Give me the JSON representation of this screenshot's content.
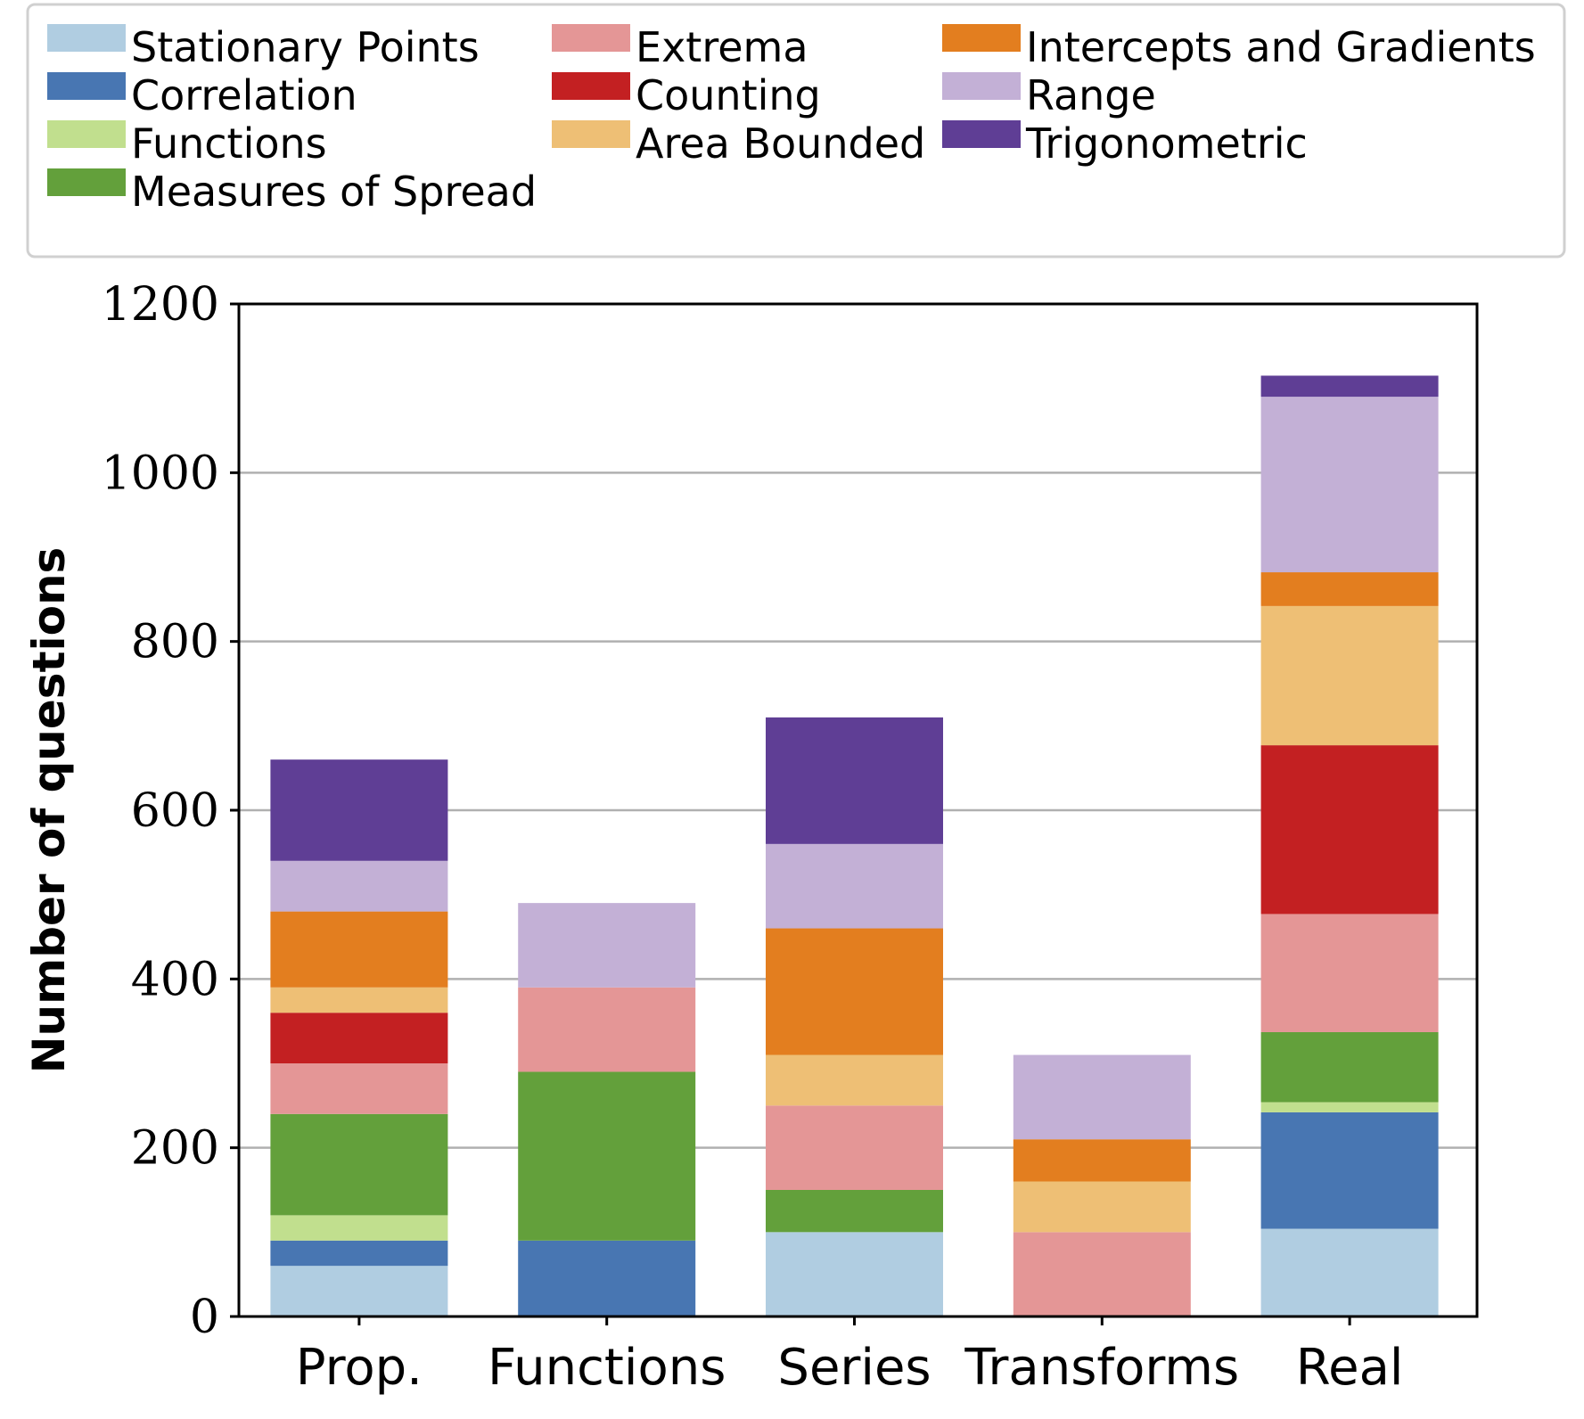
{
  "chart_data": {
    "type": "bar",
    "stacked": true,
    "title": "",
    "xlabel": "",
    "ylabel": "Number of questions",
    "ylim": [
      0,
      1200
    ],
    "yticks": [
      0,
      200,
      400,
      600,
      800,
      1000,
      1200
    ],
    "grid": "horizontal",
    "legend_position": "top",
    "categories": [
      "Prop.",
      "Functions",
      "Series",
      "Transforms",
      "Real"
    ],
    "series": [
      {
        "name": "Stationary Points",
        "color": "#b0cde1",
        "values": [
          60,
          0,
          100,
          0,
          104
        ]
      },
      {
        "name": "Correlation",
        "color": "#4876b2",
        "values": [
          30,
          90,
          0,
          0,
          138
        ]
      },
      {
        "name": "Functions",
        "color": "#c1df8e",
        "values": [
          30,
          0,
          0,
          0,
          12
        ]
      },
      {
        "name": "Measures of Spread",
        "color": "#63a03b",
        "values": [
          120,
          200,
          50,
          0,
          83
        ]
      },
      {
        "name": "Extrema",
        "color": "#e49696",
        "values": [
          60,
          100,
          100,
          100,
          140
        ]
      },
      {
        "name": "Counting",
        "color": "#c32022",
        "values": [
          60,
          0,
          0,
          0,
          200
        ]
      },
      {
        "name": "Area Bounded",
        "color": "#eebf75",
        "values": [
          30,
          0,
          60,
          60,
          165
        ]
      },
      {
        "name": "Intercepts and Gradients",
        "color": "#e37e1f",
        "values": [
          90,
          0,
          150,
          50,
          40
        ]
      },
      {
        "name": "Range",
        "color": "#c3b0d6",
        "values": [
          60,
          100,
          100,
          100,
          208
        ]
      },
      {
        "name": "Trigonometric",
        "color": "#5f3e95",
        "values": [
          120,
          0,
          150,
          0,
          25
        ]
      }
    ],
    "legend_columns": [
      [
        "Stationary Points",
        "Correlation",
        "Functions",
        "Measures of Spread"
      ],
      [
        "Extrema",
        "Counting",
        "Area Bounded"
      ],
      [
        "Intercepts and Gradients",
        "Range",
        "Trigonometric"
      ]
    ]
  }
}
